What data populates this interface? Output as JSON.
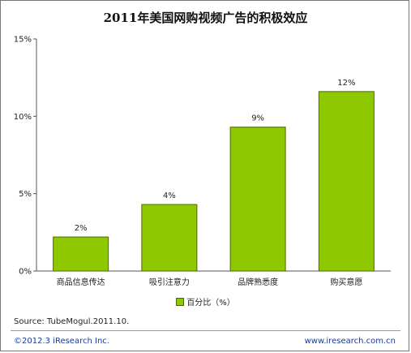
{
  "chart_data": {
    "type": "bar",
    "title": "2011年美国网购视频广告的积极效应",
    "categories": [
      "商品信息传达",
      "吸引注意力",
      "品牌熟悉度",
      "购买意愿"
    ],
    "values": [
      2.2,
      4.3,
      9.3,
      11.6
    ],
    "data_labels": [
      "2%",
      "4%",
      "9%",
      "12%"
    ],
    "series": [
      {
        "name": "百分比（%）",
        "values": [
          2.2,
          4.3,
          9.3,
          11.6
        ]
      }
    ],
    "ylim": [
      0,
      15
    ],
    "y_ticks": [
      0,
      5,
      10,
      15
    ],
    "y_tick_labels": [
      "0%",
      "5%",
      "10%",
      "15%"
    ],
    "grid": false,
    "legend_position": "bottom",
    "bar_color": "#8ec800",
    "bar_edge_color": "#4a6a00"
  },
  "footer": {
    "source": "Source: TubeMogul.2011.10.",
    "copyright": "©2012.3 iResearch Inc.",
    "website": "www.iresearch.com.cn"
  }
}
